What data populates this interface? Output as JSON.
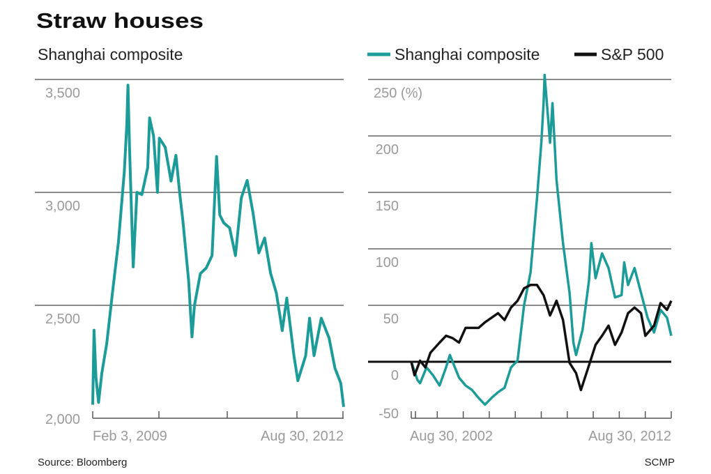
{
  "title": "Straw houses",
  "source": "Source: Bloomberg",
  "credit": "SCMP",
  "colors": {
    "shanghai": "#1c9c98",
    "sp500": "#111111",
    "grid": "#8a8a8a"
  },
  "chart_data": [
    {
      "type": "line",
      "title": "Shanghai composite",
      "ylim": [
        2000,
        3500
      ],
      "xlim": [
        "2009-02-03",
        "2012-08-30"
      ],
      "yticks": [
        "3,500",
        "3,000",
        "2,500",
        "2,000"
      ],
      "ytick_values": [
        3500,
        3000,
        2500,
        2000
      ],
      "xtick_labels": [
        "Feb 3, 2009",
        "Aug 30, 2012"
      ],
      "grid": true,
      "series": [
        {
          "color": "#1c9c98",
          "points": [
            [
              "2009-02-03",
              2060
            ],
            [
              "2009-02-10",
              2390
            ],
            [
              "2009-02-20",
              2180
            ],
            [
              "2009-03-03",
              2070
            ],
            [
              "2009-03-20",
              2200
            ],
            [
              "2009-04-15",
              2330
            ],
            [
              "2009-05-15",
              2560
            ],
            [
              "2009-06-15",
              2780
            ],
            [
              "2009-07-15",
              3090
            ],
            [
              "2009-07-28",
              3300
            ],
            [
              "2009-08-04",
              3475
            ],
            [
              "2009-08-12",
              3200
            ],
            [
              "2009-08-31",
              2670
            ],
            [
              "2009-09-10",
              2830
            ],
            [
              "2009-09-20",
              3000
            ],
            [
              "2009-10-15",
              2990
            ],
            [
              "2009-11-15",
              3110
            ],
            [
              "2009-11-25",
              3330
            ],
            [
              "2009-12-15",
              3250
            ],
            [
              "2010-01-05",
              3000
            ],
            [
              "2010-01-15",
              3240
            ],
            [
              "2010-02-15",
              3200
            ],
            [
              "2010-03-15",
              3050
            ],
            [
              "2010-04-10",
              3164
            ],
            [
              "2010-04-30",
              2990
            ],
            [
              "2010-05-15",
              2880
            ],
            [
              "2010-06-15",
              2610
            ],
            [
              "2010-07-02",
              2360
            ],
            [
              "2010-07-15",
              2500
            ],
            [
              "2010-08-15",
              2640
            ],
            [
              "2010-09-15",
              2665
            ],
            [
              "2010-10-15",
              2720
            ],
            [
              "2010-11-08",
              3159
            ],
            [
              "2010-11-25",
              2900
            ],
            [
              "2010-12-15",
              2865
            ],
            [
              "2011-01-15",
              2843
            ],
            [
              "2011-02-15",
              2720
            ],
            [
              "2011-03-15",
              2976
            ],
            [
              "2011-04-15",
              3053
            ],
            [
              "2011-05-15",
              2909
            ],
            [
              "2011-06-15",
              2732
            ],
            [
              "2011-07-15",
              2798
            ],
            [
              "2011-08-15",
              2643
            ],
            [
              "2011-09-15",
              2554
            ],
            [
              "2011-10-15",
              2388
            ],
            [
              "2011-11-08",
              2532
            ],
            [
              "2011-12-15",
              2277
            ],
            [
              "2012-01-05",
              2166
            ],
            [
              "2012-02-15",
              2277
            ],
            [
              "2012-03-05",
              2443
            ],
            [
              "2012-03-28",
              2277
            ],
            [
              "2012-05-05",
              2443
            ],
            [
              "2012-06-15",
              2355
            ],
            [
              "2012-07-15",
              2222
            ],
            [
              "2012-08-15",
              2155
            ],
            [
              "2012-08-30",
              2050
            ]
          ]
        }
      ]
    },
    {
      "type": "line",
      "ylabel": "(%)",
      "ylim": [
        -50,
        250
      ],
      "xlim": [
        "2002-08-30",
        "2012-08-30"
      ],
      "yticks": [
        "250 (%)",
        "200",
        "150",
        "100",
        "50",
        "0",
        "-50"
      ],
      "ytick_values": [
        250,
        200,
        150,
        100,
        50,
        0,
        -50
      ],
      "xtick_labels": [
        "Aug 30, 2002",
        "Aug 30, 2012"
      ],
      "grid": true,
      "legend": "top",
      "series": [
        {
          "name": "Shanghai composite",
          "color": "#1c9c98",
          "points": [
            [
              "2002-08-30",
              0
            ],
            [
              "2002-11-25",
              -16
            ],
            [
              "2003-01-01",
              -19
            ],
            [
              "2003-04-01",
              -5
            ],
            [
              "2003-07-01",
              -12
            ],
            [
              "2003-10-01",
              -21
            ],
            [
              "2004-01-01",
              -5
            ],
            [
              "2004-02-25",
              6
            ],
            [
              "2004-07-01",
              -14
            ],
            [
              "2004-10-01",
              -21
            ],
            [
              "2005-01-01",
              -25
            ],
            [
              "2005-04-01",
              -32
            ],
            [
              "2005-07-01",
              -38
            ],
            [
              "2005-10-01",
              -32
            ],
            [
              "2006-01-01",
              -27
            ],
            [
              "2006-04-01",
              -23
            ],
            [
              "2006-07-01",
              -5
            ],
            [
              "2006-10-01",
              1
            ],
            [
              "2007-01-01",
              50
            ],
            [
              "2007-04-01",
              79
            ],
            [
              "2007-07-01",
              145
            ],
            [
              "2007-09-01",
              194
            ],
            [
              "2007-10-01",
              229
            ],
            [
              "2007-10-16",
              254
            ],
            [
              "2008-01-01",
              194
            ],
            [
              "2008-02-05",
              229
            ],
            [
              "2008-04-01",
              161
            ],
            [
              "2008-07-01",
              105
            ],
            [
              "2008-10-01",
              61
            ],
            [
              "2008-11-25",
              17
            ],
            [
              "2009-01-01",
              6
            ],
            [
              "2009-04-01",
              28
            ],
            [
              "2009-07-01",
              72
            ],
            [
              "2009-08-04",
              105
            ],
            [
              "2009-10-01",
              74
            ],
            [
              "2010-01-01",
              96
            ],
            [
              "2010-04-01",
              83
            ],
            [
              "2010-07-01",
              57
            ],
            [
              "2010-10-01",
              59
            ],
            [
              "2010-11-08",
              88
            ],
            [
              "2011-01-01",
              68
            ],
            [
              "2011-04-01",
              83
            ],
            [
              "2011-07-01",
              61
            ],
            [
              "2011-10-01",
              39
            ],
            [
              "2012-01-01",
              26
            ],
            [
              "2012-04-01",
              46
            ],
            [
              "2012-07-01",
              39
            ],
            [
              "2012-08-30",
              23
            ]
          ]
        },
        {
          "name": "S&P 500",
          "color": "#111111",
          "points": [
            [
              "2002-08-30",
              0
            ],
            [
              "2002-10-15",
              -12
            ],
            [
              "2003-01-01",
              1
            ],
            [
              "2003-03-15",
              -5
            ],
            [
              "2003-05-25",
              8
            ],
            [
              "2003-10-01",
              17
            ],
            [
              "2004-01-01",
              23
            ],
            [
              "2004-04-01",
              21
            ],
            [
              "2004-07-01",
              17
            ],
            [
              "2004-10-01",
              30
            ],
            [
              "2005-01-01",
              30
            ],
            [
              "2005-04-01",
              30
            ],
            [
              "2005-07-01",
              35
            ],
            [
              "2005-10-01",
              39
            ],
            [
              "2006-01-01",
              43
            ],
            [
              "2006-04-01",
              37
            ],
            [
              "2006-07-01",
              48
            ],
            [
              "2006-10-01",
              54
            ],
            [
              "2007-01-01",
              65
            ],
            [
              "2007-04-01",
              68
            ],
            [
              "2007-07-01",
              68
            ],
            [
              "2007-10-01",
              59
            ],
            [
              "2008-01-01",
              41
            ],
            [
              "2008-04-01",
              54
            ],
            [
              "2008-07-01",
              37
            ],
            [
              "2008-10-01",
              -1
            ],
            [
              "2009-01-01",
              -10
            ],
            [
              "2009-03-09",
              -25
            ],
            [
              "2009-07-01",
              -3
            ],
            [
              "2009-10-01",
              15
            ],
            [
              "2010-01-01",
              23
            ],
            [
              "2010-04-01",
              32
            ],
            [
              "2010-07-01",
              15
            ],
            [
              "2010-10-01",
              26
            ],
            [
              "2011-01-01",
              43
            ],
            [
              "2011-04-01",
              48
            ],
            [
              "2011-07-01",
              43
            ],
            [
              "2011-09-01",
              23
            ],
            [
              "2012-01-01",
              32
            ],
            [
              "2012-04-01",
              52
            ],
            [
              "2012-07-01",
              46
            ],
            [
              "2012-08-30",
              54
            ]
          ]
        }
      ]
    }
  ]
}
